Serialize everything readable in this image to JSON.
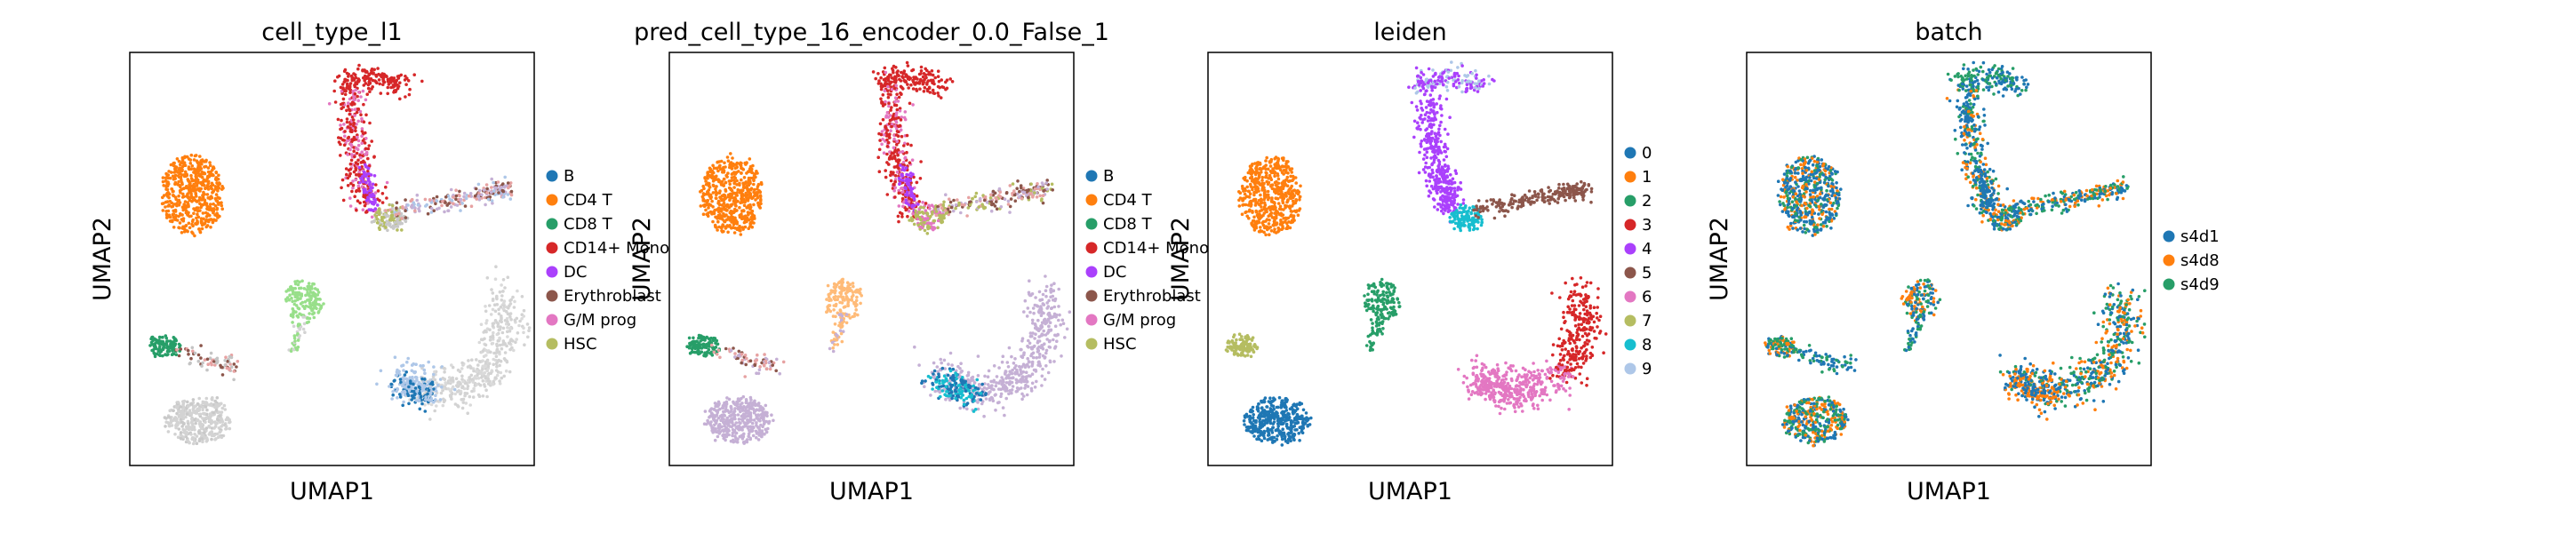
{
  "chart_data": [
    {
      "type": "scatter",
      "title": "cell_type_l1",
      "xlabel": "UMAP1",
      "ylabel": "UMAP2",
      "grid": false,
      "legend_placement": "right",
      "legend": [
        {
          "label": "B",
          "color": "#1f77b4"
        },
        {
          "label": "CD4 T",
          "color": "#ff7f0e"
        },
        {
          "label": "CD8 T",
          "color": "#279e68"
        },
        {
          "label": "CD14+ Mono",
          "color": "#d62728"
        },
        {
          "label": "DC",
          "color": "#aa40fc"
        },
        {
          "label": "Erythroblast",
          "color": "#8c564b"
        },
        {
          "label": "G/M prog",
          "color": "#e377c2"
        },
        {
          "label": "HSC",
          "color": "#b5bd61"
        }
      ]
    },
    {
      "type": "scatter",
      "title": "pred_cell_type_16_encoder_0.0_False_1",
      "xlabel": "UMAP1",
      "ylabel": "UMAP2",
      "grid": false,
      "legend_placement": "right",
      "legend": [
        {
          "label": "B",
          "color": "#1f77b4"
        },
        {
          "label": "CD4 T",
          "color": "#ff7f0e"
        },
        {
          "label": "CD8 T",
          "color": "#279e68"
        },
        {
          "label": "CD14+ Mono",
          "color": "#d62728"
        },
        {
          "label": "DC",
          "color": "#aa40fc"
        },
        {
          "label": "Erythroblast",
          "color": "#8c564b"
        },
        {
          "label": "G/M prog",
          "color": "#e377c2"
        },
        {
          "label": "HSC",
          "color": "#b5bd61"
        }
      ]
    },
    {
      "type": "scatter",
      "title": "leiden",
      "xlabel": "UMAP1",
      "ylabel": "UMAP2",
      "grid": false,
      "legend_placement": "right",
      "legend": [
        {
          "label": "0",
          "color": "#1f77b4"
        },
        {
          "label": "1",
          "color": "#ff7f0e"
        },
        {
          "label": "2",
          "color": "#279e68"
        },
        {
          "label": "3",
          "color": "#d62728"
        },
        {
          "label": "4",
          "color": "#aa40fc"
        },
        {
          "label": "5",
          "color": "#8c564b"
        },
        {
          "label": "6",
          "color": "#e377c2"
        },
        {
          "label": "7",
          "color": "#b5bd61"
        },
        {
          "label": "8",
          "color": "#17becf"
        },
        {
          "label": "9",
          "color": "#aec7e8"
        }
      ]
    },
    {
      "type": "scatter",
      "title": "batch",
      "xlabel": "UMAP1",
      "ylabel": "UMAP2",
      "grid": false,
      "legend_placement": "right",
      "legend": [
        {
          "label": "s4d1",
          "color": "#1f77b4"
        },
        {
          "label": "s4d8",
          "color": "#ff7f0e"
        },
        {
          "label": "s4d9",
          "color": "#279e68"
        }
      ]
    }
  ]
}
